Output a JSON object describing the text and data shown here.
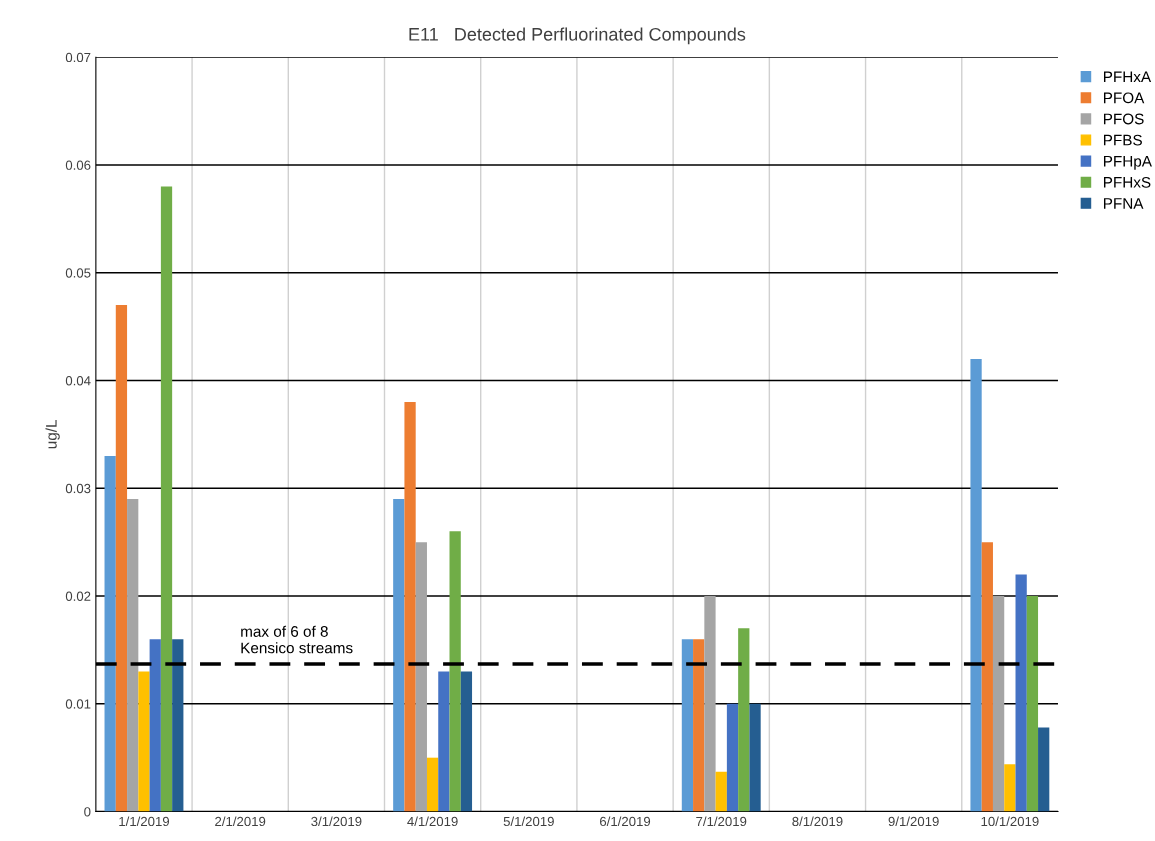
{
  "chart_data": {
    "type": "bar",
    "title": "E11   Detected Perfluorinated Compounds",
    "ylabel": "ug/L",
    "categories": [
      "1/1/2019",
      "2/1/2019",
      "3/1/2019",
      "4/1/2019",
      "5/1/2019",
      "6/1/2019",
      "7/1/2019",
      "8/1/2019",
      "9/1/2019",
      "10/1/2019"
    ],
    "series": [
      {
        "name": "PFHxA",
        "color": "#5b9bd5",
        "values": [
          0.033,
          null,
          null,
          0.029,
          null,
          null,
          0.016,
          null,
          null,
          0.042
        ]
      },
      {
        "name": "PFOA",
        "color": "#ed7d31",
        "values": [
          0.047,
          null,
          null,
          0.038,
          null,
          null,
          0.016,
          null,
          null,
          0.025
        ]
      },
      {
        "name": "PFOS",
        "color": "#a5a5a5",
        "values": [
          0.029,
          null,
          null,
          0.025,
          null,
          null,
          0.02,
          null,
          null,
          0.02
        ]
      },
      {
        "name": "PFBS",
        "color": "#ffc000",
        "values": [
          0.013,
          null,
          null,
          0.005,
          null,
          null,
          0.0037,
          null,
          null,
          0.0044
        ]
      },
      {
        "name": "PFHpA",
        "color": "#4472c4",
        "values": [
          0.016,
          null,
          null,
          0.013,
          null,
          null,
          0.01,
          null,
          null,
          0.022
        ]
      },
      {
        "name": "PFHxS",
        "color": "#70ad47",
        "values": [
          0.058,
          null,
          null,
          0.026,
          null,
          null,
          0.017,
          null,
          null,
          0.02
        ]
      },
      {
        "name": "PFNA",
        "color": "#255e91",
        "values": [
          0.016,
          null,
          null,
          0.013,
          null,
          null,
          0.01,
          null,
          null,
          0.0078
        ]
      }
    ],
    "ylim": [
      0,
      0.07
    ],
    "yticks": [
      0,
      0.01,
      0.02,
      0.03,
      0.04,
      0.05,
      0.06,
      0.07
    ],
    "ref_lines": [
      {
        "axis": "y",
        "value": 0.0137,
        "label": "max of 6 of 8\nKensico streams",
        "color": "#000000",
        "line_style": "dashed"
      }
    ],
    "grid": true,
    "legend": "right"
  }
}
